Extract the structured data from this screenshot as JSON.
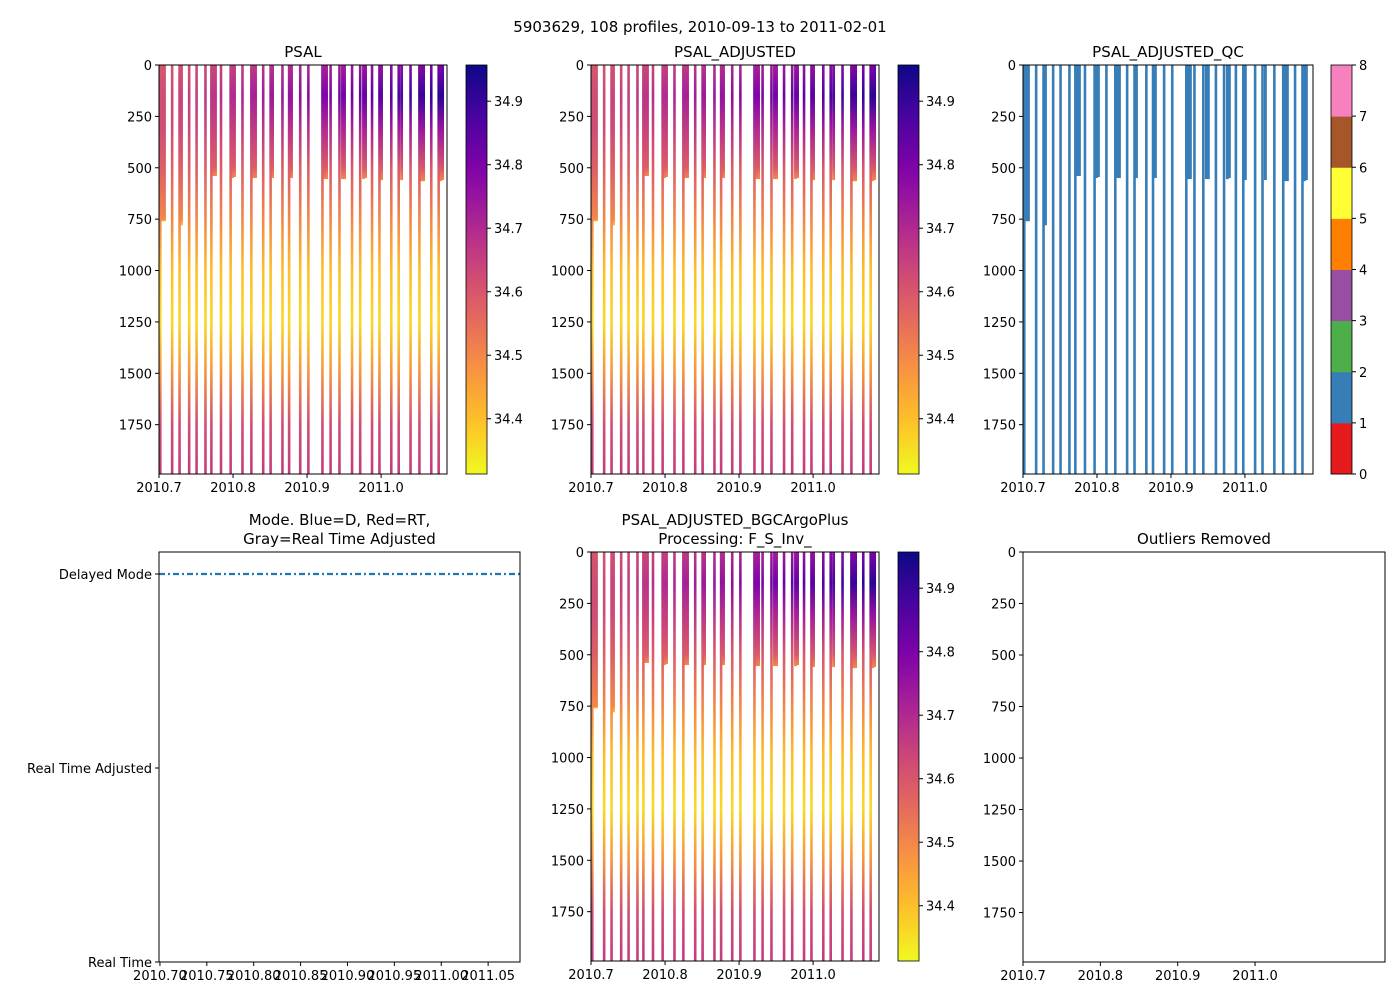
{
  "figure": {
    "suptitle": "5903629, 108 profiles, 2010-09-13 to 2011-02-01"
  },
  "profiles": {
    "deep": [
      2010.7,
      2010.716,
      2010.726,
      2010.739,
      2010.749,
      2010.761,
      2010.769,
      2010.782,
      2010.795,
      2010.811,
      2010.823,
      2010.839,
      2010.849,
      2010.865,
      2010.874,
      2010.889,
      2010.9,
      2010.919,
      2010.93,
      2010.942,
      2010.959,
      2010.97,
      2010.986,
      2010.996,
      2011.012,
      2011.022,
      2011.038,
      2011.05,
      2011.066,
      2011.076
    ],
    "deep_max_depth": 2000,
    "shallow": [
      {
        "t": 2010.7027,
        "depth": 760
      },
      {
        "t": 2010.7054,
        "depth": 760
      },
      {
        "t": 2010.7284,
        "depth": 780
      },
      {
        "t": 2010.7716,
        "depth": 540
      },
      {
        "t": 2010.7743,
        "depth": 540
      },
      {
        "t": 2010.7973,
        "depth": 550
      },
      {
        "t": 2010.8,
        "depth": 545
      },
      {
        "t": 2010.8257,
        "depth": 550
      },
      {
        "t": 2010.8284,
        "depth": 550
      },
      {
        "t": 2010.8514,
        "depth": 550
      },
      {
        "t": 2010.877,
        "depth": 550
      },
      {
        "t": 2010.9216,
        "depth": 555
      },
      {
        "t": 2010.9243,
        "depth": 555
      },
      {
        "t": 2010.9459,
        "depth": 555
      },
      {
        "t": 2010.9486,
        "depth": 555
      },
      {
        "t": 2010.9743,
        "depth": 555
      },
      {
        "t": 2010.977,
        "depth": 550
      },
      {
        "t": 2010.9986,
        "depth": 560
      },
      {
        "t": 2011.0257,
        "depth": 560
      },
      {
        "t": 2011.0527,
        "depth": 565
      },
      {
        "t": 2011.0554,
        "depth": 565
      },
      {
        "t": 2011.0784,
        "depth": 565
      },
      {
        "t": 2011.0811,
        "depth": 560
      }
    ],
    "salinity_vs_depth": {
      "depth": [
        0,
        150,
        300,
        500,
        750,
        1000,
        1250,
        1500,
        1750,
        2000
      ],
      "salinity_early": [
        34.6,
        34.62,
        34.62,
        34.58,
        34.5,
        34.4,
        34.36,
        34.48,
        34.62,
        34.66
      ],
      "salinity_late": [
        34.8,
        34.92,
        34.76,
        34.6,
        34.5,
        34.4,
        34.36,
        34.48,
        34.62,
        34.66
      ]
    }
  },
  "chart_data": [
    {
      "id": "psal",
      "type": "heatmap",
      "title": "PSAL",
      "xlabel": "",
      "ylabel": "",
      "xlim": [
        2010.7,
        2011.089
      ],
      "ylim": [
        1990,
        0
      ],
      "xticks": [
        2010.7,
        2010.8,
        2010.9,
        2011.0
      ],
      "xticklabels": [
        "2010.7",
        "2010.8",
        "2010.9",
        "2011.0"
      ],
      "yticks": [
        0,
        250,
        500,
        750,
        1000,
        1250,
        1500,
        1750
      ],
      "yticklabels": [
        "0",
        "250",
        "500",
        "750",
        "1000",
        "1250",
        "1500",
        "1750"
      ],
      "colorbar": {
        "cmap": "plasma_r",
        "range": [
          34.313,
          34.957
        ],
        "ticks": [
          34.4,
          34.5,
          34.6,
          34.7,
          34.8,
          34.9
        ],
        "ticklabels": [
          "34.4",
          "34.5",
          "34.6",
          "34.7",
          "34.8",
          "34.9"
        ]
      }
    },
    {
      "id": "psal_adj",
      "type": "heatmap",
      "title": "PSAL_ADJUSTED",
      "xlabel": "",
      "ylabel": "",
      "xlim": [
        2010.7,
        2011.089
      ],
      "ylim": [
        1990,
        0
      ],
      "xticks": [
        2010.7,
        2010.8,
        2010.9,
        2011.0
      ],
      "xticklabels": [
        "2010.7",
        "2010.8",
        "2010.9",
        "2011.0"
      ],
      "yticks": [
        0,
        250,
        500,
        750,
        1000,
        1250,
        1500,
        1750
      ],
      "yticklabels": [
        "0",
        "250",
        "500",
        "750",
        "1000",
        "1250",
        "1500",
        "1750"
      ],
      "colorbar": {
        "cmap": "plasma_r",
        "range": [
          34.313,
          34.957
        ],
        "ticks": [
          34.4,
          34.5,
          34.6,
          34.7,
          34.8,
          34.9
        ],
        "ticklabels": [
          "34.4",
          "34.5",
          "34.6",
          "34.7",
          "34.8",
          "34.9"
        ]
      }
    },
    {
      "id": "qc",
      "type": "heatmap",
      "title": "PSAL_ADJUSTED_QC",
      "xlabel": "",
      "ylabel": "",
      "xlim": [
        2010.7,
        2011.092
      ],
      "ylim": [
        1990,
        0
      ],
      "value": 1,
      "xticks": [
        2010.7,
        2010.8,
        2010.9,
        2011.0
      ],
      "xticklabels": [
        "2010.7",
        "2010.8",
        "2010.9",
        "2011.0"
      ],
      "yticks": [
        0,
        250,
        500,
        750,
        1000,
        1250,
        1500,
        1750
      ],
      "yticklabels": [
        "0",
        "250",
        "500",
        "750",
        "1000",
        "1250",
        "1500",
        "1750"
      ],
      "colorbar": {
        "cmap": "discrete",
        "range": [
          0,
          8
        ],
        "colors": [
          "#e41a1c",
          "#377eb8",
          "#4daf4a",
          "#984ea3",
          "#ff7f00",
          "#ffff33",
          "#a65628",
          "#f781bf",
          "#999999"
        ],
        "ticks": [
          0,
          1,
          2,
          3,
          4,
          5,
          6,
          7,
          8
        ],
        "ticklabels": [
          "0",
          "1",
          "2",
          "3",
          "4",
          "5",
          "6",
          "7",
          "8"
        ]
      }
    },
    {
      "id": "mode",
      "type": "line",
      "title": [
        "Mode. Blue=D, Red=RT,",
        "Gray=Real Time Adjusted"
      ],
      "xlabel": "",
      "ylabel": "",
      "xlim": [
        2010.699,
        2011.084
      ],
      "ylim": [
        0,
        2
      ],
      "xticks": [
        2010.7,
        2010.75,
        2010.8,
        2010.85,
        2010.9,
        2010.95,
        2011.0,
        2011.05
      ],
      "xticklabels": [
        "2010.70",
        "2010.75",
        "2010.80",
        "2010.85",
        "2010.90",
        "2010.95",
        "2011.00",
        "2011.05"
      ],
      "yticks": [
        0,
        1,
        2
      ],
      "yticklabels": [
        "Real Time",
        "Real Time Adjusted",
        "Delayed Mode"
      ],
      "series": [
        {
          "name": "Delayed",
          "color": "#1f77b4",
          "style": "dash-dot",
          "x": [
            2010.699,
            2011.084
          ],
          "y": [
            2,
            2
          ]
        }
      ]
    },
    {
      "id": "bgc",
      "type": "heatmap",
      "title": [
        "PSAL_ADJUSTED_BGCArgoPlus",
        "Processing: F_S_Inv_"
      ],
      "xlabel": "",
      "ylabel": "",
      "xlim": [
        2010.7,
        2011.089
      ],
      "ylim": [
        1990,
        0
      ],
      "xticks": [
        2010.7,
        2010.8,
        2010.9,
        2011.0
      ],
      "xticklabels": [
        "2010.7",
        "2010.8",
        "2010.9",
        "2011.0"
      ],
      "yticks": [
        0,
        250,
        500,
        750,
        1000,
        1250,
        1500,
        1750
      ],
      "yticklabels": [
        "0",
        "250",
        "500",
        "750",
        "1000",
        "1250",
        "1500",
        "1750"
      ],
      "colorbar": {
        "cmap": "plasma_r",
        "range": [
          34.313,
          34.957
        ],
        "ticks": [
          34.4,
          34.5,
          34.6,
          34.7,
          34.8,
          34.9
        ],
        "ticklabels": [
          "34.4",
          "34.5",
          "34.6",
          "34.7",
          "34.8",
          "34.9"
        ]
      }
    },
    {
      "id": "outliers",
      "type": "scatter",
      "title": "Outliers Removed",
      "xlabel": "",
      "ylabel": "",
      "xlim": [
        2010.7,
        2011.168
      ],
      "ylim": [
        1990,
        0
      ],
      "xticks": [
        2010.7,
        2010.8,
        2010.9,
        2011.0
      ],
      "xticklabels": [
        "2010.7",
        "2010.8",
        "2010.9",
        "2011.0"
      ],
      "yticks": [
        0,
        250,
        500,
        750,
        1000,
        1250,
        1500,
        1750
      ],
      "yticklabels": [
        "0",
        "250",
        "500",
        "750",
        "1000",
        "1250",
        "1500",
        "1750"
      ],
      "points": []
    }
  ]
}
